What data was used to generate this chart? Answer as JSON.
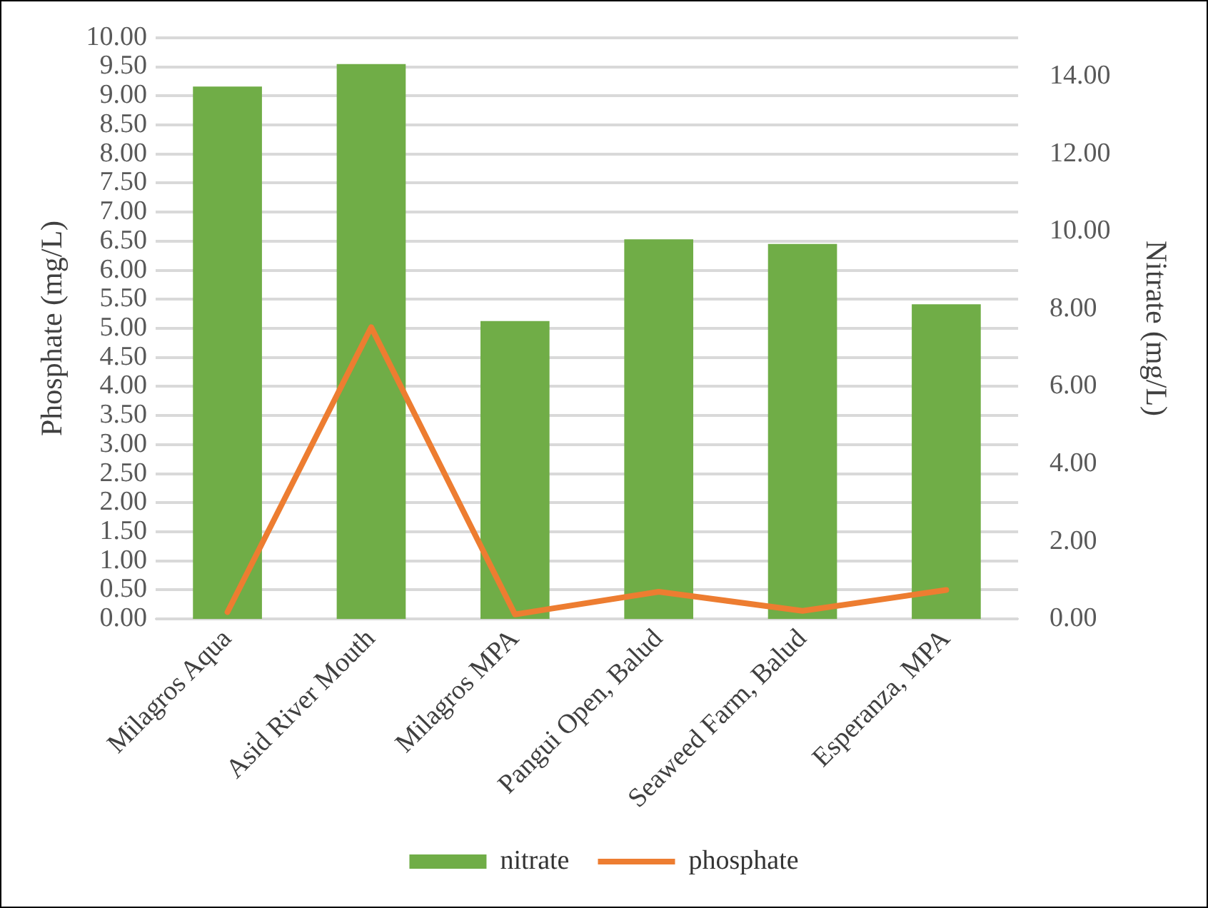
{
  "chart_data": {
    "type": "bar",
    "ylabel": "Phosphate (mg/L)",
    "y2label": "Nitrate (mg/L)",
    "categories": [
      "Milagros Aqua",
      "Asid River Mouth",
      "Milagros MPA",
      "Pangui Open, Balud",
      "Seaweed Farm, Balud",
      "Esperanza, MPA"
    ],
    "series": [
      {
        "name": "nitrate",
        "axis": "y2",
        "color": "#70ad47",
        "values": [
          13.74,
          14.32,
          7.69,
          9.8,
          9.68,
          8.12
        ]
      },
      {
        "name": "phosphate",
        "type": "line",
        "color": "#ed7d31",
        "values": [
          0.12,
          5.02,
          0.08,
          0.47,
          0.14,
          0.5
        ]
      }
    ],
    "ylim": [
      0,
      10
    ],
    "yticks": [
      {
        "value": 0,
        "label": "0.00"
      },
      {
        "value": 0.5,
        "label": "0.50"
      },
      {
        "value": 1,
        "label": "1.00"
      },
      {
        "value": 1.5,
        "label": "1.50"
      },
      {
        "value": 2,
        "label": "2.00"
      },
      {
        "value": 2.5,
        "label": "2.50"
      },
      {
        "value": 3,
        "label": "3.00"
      },
      {
        "value": 3.5,
        "label": "3.50"
      },
      {
        "value": 4,
        "label": "4.00"
      },
      {
        "value": 4.5,
        "label": "4.50"
      },
      {
        "value": 5,
        "label": "5.00"
      },
      {
        "value": 5.5,
        "label": "5.50"
      },
      {
        "value": 6,
        "label": "6.00"
      },
      {
        "value": 6.5,
        "label": "6.50"
      },
      {
        "value": 7,
        "label": "7.00"
      },
      {
        "value": 7.5,
        "label": "7.50"
      },
      {
        "value": 8,
        "label": "8.00"
      },
      {
        "value": 8.5,
        "label": "8.50"
      },
      {
        "value": 9,
        "label": "9.00"
      },
      {
        "value": 9.5,
        "label": "9.50"
      },
      {
        "value": 10,
        "label": "10.00"
      }
    ],
    "y2lim": [
      0,
      15
    ],
    "y2ticks": [
      {
        "value": 0,
        "label": "0.00"
      },
      {
        "value": 2,
        "label": "2.00"
      },
      {
        "value": 4,
        "label": "4.00"
      },
      {
        "value": 6,
        "label": "6.00"
      },
      {
        "value": 8,
        "label": "8.00"
      },
      {
        "value": 10,
        "label": "10.00"
      },
      {
        "value": 12,
        "label": "12.00"
      },
      {
        "value": 14,
        "label": "14.00"
      }
    ],
    "grid": "y",
    "legend": "bottom",
    "marker": "none",
    "line_style": "solid"
  }
}
